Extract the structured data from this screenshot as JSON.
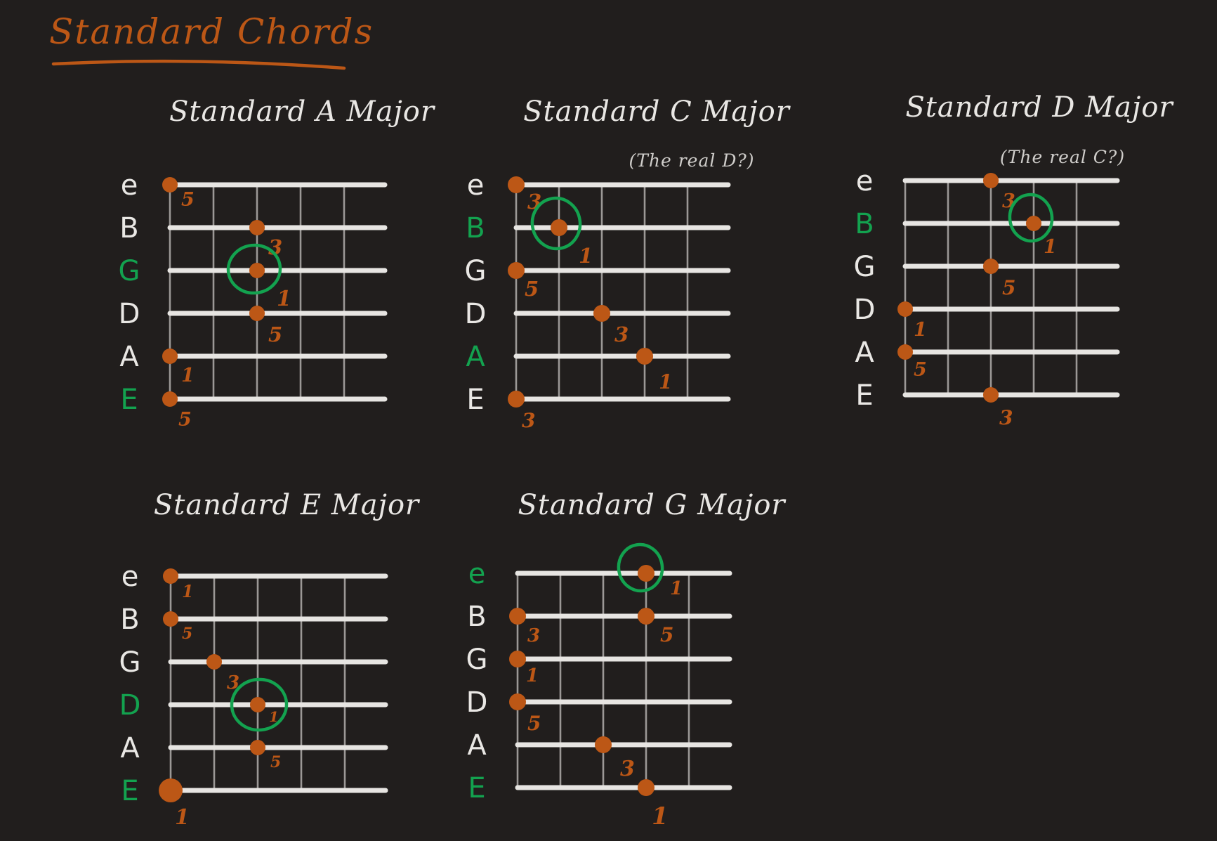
{
  "page": {
    "title": "Standard Chords",
    "background": "#211e1d"
  },
  "palette": {
    "orange": "#bc5716",
    "green": "#13a24f",
    "white": "#e9e7e4",
    "subtitle": "#cfcdca",
    "string_line": "#e7e5e2",
    "fret_line": "#9b9896"
  },
  "chords": [
    {
      "id": "a-major",
      "title": "Standard A Major",
      "subtitle": "",
      "strings": [
        {
          "name": "e",
          "green": false
        },
        {
          "name": "B",
          "green": false
        },
        {
          "name": "G",
          "green": true
        },
        {
          "name": "D",
          "green": false
        },
        {
          "name": "A",
          "green": false
        },
        {
          "name": "E",
          "green": true
        }
      ],
      "dots": [
        {
          "string": "e",
          "fret": 0,
          "interval": "5",
          "circled": false
        },
        {
          "string": "B",
          "fret": 2,
          "interval": "3",
          "circled": false
        },
        {
          "string": "G",
          "fret": 2,
          "interval": "1",
          "circled": true
        },
        {
          "string": "D",
          "fret": 2,
          "interval": "5",
          "circled": false
        },
        {
          "string": "A",
          "fret": 0,
          "interval": "1",
          "circled": false
        },
        {
          "string": "E",
          "fret": 0,
          "interval": "5",
          "circled": false
        }
      ]
    },
    {
      "id": "c-major",
      "title": "Standard C Major",
      "subtitle": "(The real D?)",
      "strings": [
        {
          "name": "e",
          "green": false
        },
        {
          "name": "B",
          "green": true
        },
        {
          "name": "G",
          "green": false
        },
        {
          "name": "D",
          "green": false
        },
        {
          "name": "A",
          "green": true
        },
        {
          "name": "E",
          "green": false
        }
      ],
      "dots": [
        {
          "string": "e",
          "fret": 0,
          "interval": "3",
          "circled": false
        },
        {
          "string": "B",
          "fret": 1,
          "interval": "1",
          "circled": true
        },
        {
          "string": "G",
          "fret": 0,
          "interval": "5",
          "circled": false
        },
        {
          "string": "D",
          "fret": 2,
          "interval": "3",
          "circled": false
        },
        {
          "string": "A",
          "fret": 3,
          "interval": "1",
          "circled": false
        },
        {
          "string": "E",
          "fret": 0,
          "interval": "3",
          "circled": false
        }
      ]
    },
    {
      "id": "d-major",
      "title": "Standard D Major",
      "subtitle": "(The real C?)",
      "strings": [
        {
          "name": "e",
          "green": false
        },
        {
          "name": "B",
          "green": true
        },
        {
          "name": "G",
          "green": false
        },
        {
          "name": "D",
          "green": false
        },
        {
          "name": "A",
          "green": false
        },
        {
          "name": "E",
          "green": false
        }
      ],
      "dots": [
        {
          "string": "e",
          "fret": 2,
          "interval": "3",
          "circled": false
        },
        {
          "string": "B",
          "fret": 3,
          "interval": "1",
          "circled": true
        },
        {
          "string": "G",
          "fret": 2,
          "interval": "5",
          "circled": false
        },
        {
          "string": "D",
          "fret": 0,
          "interval": "1",
          "circled": false
        },
        {
          "string": "A",
          "fret": 0,
          "interval": "5",
          "circled": false
        },
        {
          "string": "E",
          "fret": 2,
          "interval": "3",
          "circled": false
        }
      ]
    },
    {
      "id": "e-major",
      "title": "Standard E Major",
      "subtitle": "",
      "strings": [
        {
          "name": "e",
          "green": false
        },
        {
          "name": "B",
          "green": false
        },
        {
          "name": "G",
          "green": false
        },
        {
          "name": "D",
          "green": true
        },
        {
          "name": "A",
          "green": false
        },
        {
          "name": "E",
          "green": true
        }
      ],
      "dots": [
        {
          "string": "e",
          "fret": 0,
          "interval": "1",
          "circled": false
        },
        {
          "string": "B",
          "fret": 0,
          "interval": "5",
          "circled": false
        },
        {
          "string": "G",
          "fret": 1,
          "interval": "3",
          "circled": false
        },
        {
          "string": "D",
          "fret": 2,
          "interval": "1",
          "circled": true
        },
        {
          "string": "A",
          "fret": 2,
          "interval": "5",
          "circled": false
        },
        {
          "string": "E",
          "fret": 0,
          "interval": "1",
          "circled": false,
          "big": true
        }
      ]
    },
    {
      "id": "g-major",
      "title": "Standard G Major",
      "subtitle": "",
      "strings": [
        {
          "name": "e",
          "green": true
        },
        {
          "name": "B",
          "green": false
        },
        {
          "name": "G",
          "green": false
        },
        {
          "name": "D",
          "green": false
        },
        {
          "name": "A",
          "green": false
        },
        {
          "name": "E",
          "green": true
        }
      ],
      "dots": [
        {
          "string": "e",
          "fret": 3,
          "interval": "1",
          "circled": true
        },
        {
          "string": "B",
          "fret": 0,
          "interval": "3",
          "circled": false
        },
        {
          "string": "B",
          "fret": 3,
          "interval": "5",
          "circled": false
        },
        {
          "string": "G",
          "fret": 0,
          "interval": "1",
          "circled": false
        },
        {
          "string": "D",
          "fret": 0,
          "interval": "5",
          "circled": false
        },
        {
          "string": "A",
          "fret": 2,
          "interval": "3",
          "circled": false
        },
        {
          "string": "E",
          "fret": 3,
          "interval": "1",
          "circled": false
        }
      ]
    }
  ]
}
